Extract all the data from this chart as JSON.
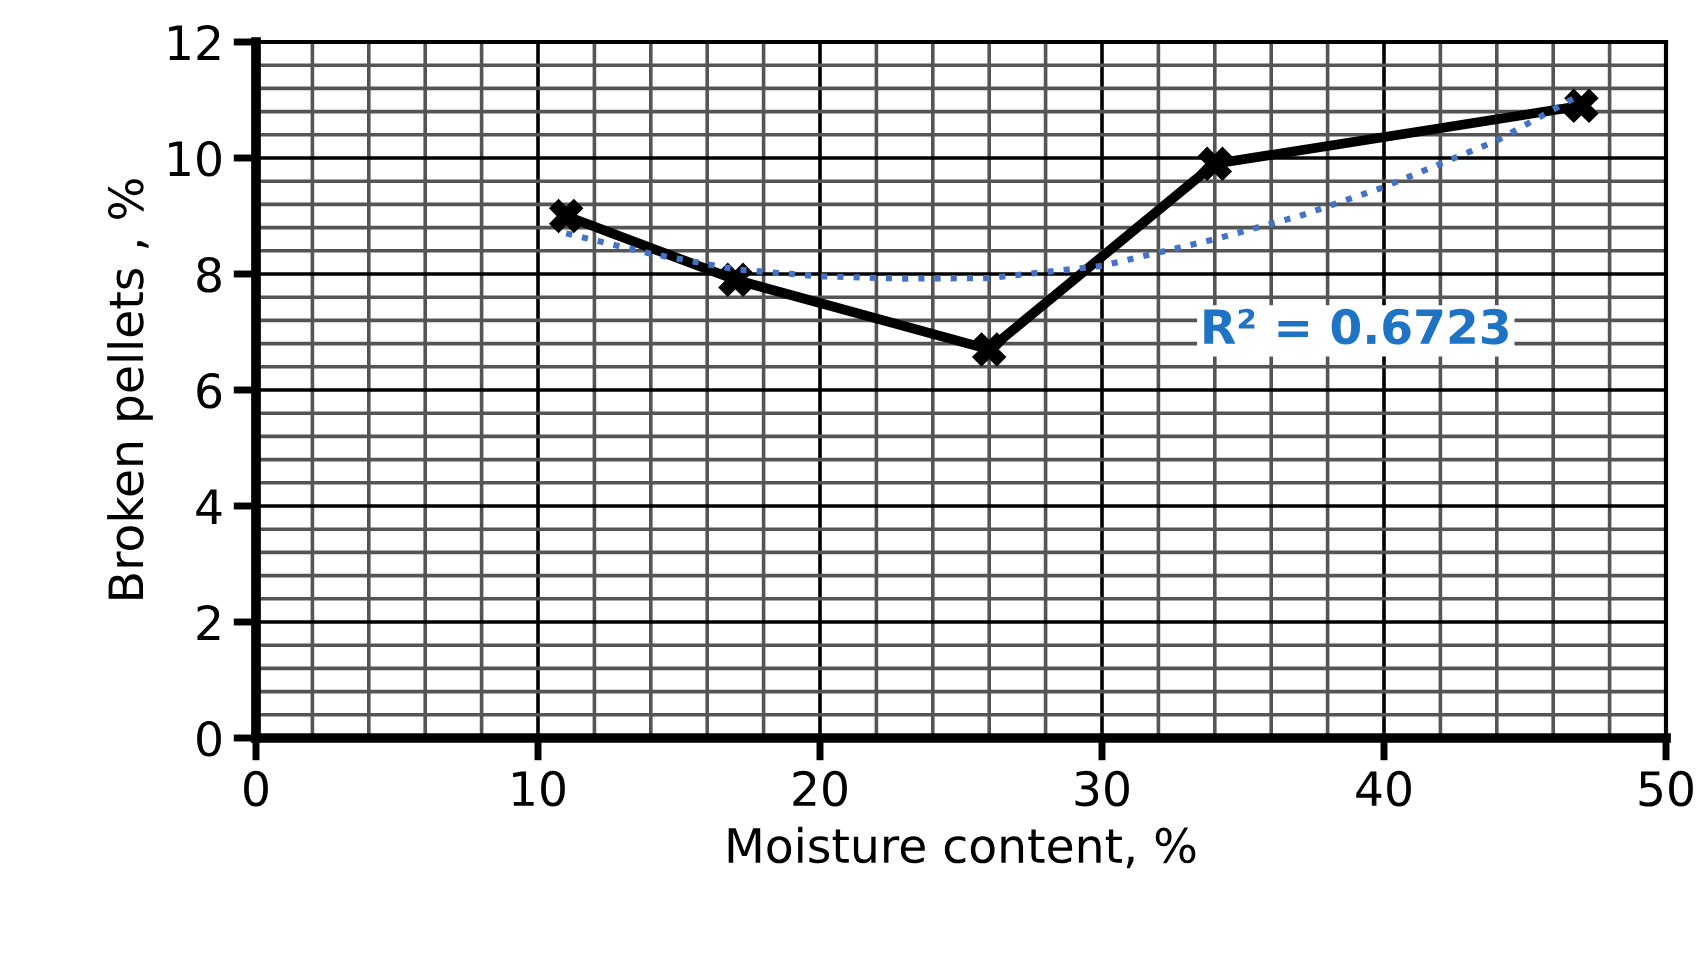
{
  "chart_data": {
    "type": "line",
    "xlabel": "Moisture content, %",
    "ylabel": "Broken pellets , %",
    "xlim": [
      0,
      50
    ],
    "xticks": [
      0,
      10,
      20,
      30,
      40,
      50
    ],
    "ylim": [
      0,
      12
    ],
    "yticks": [
      0,
      2,
      4,
      6,
      8,
      10,
      12
    ],
    "grid": true,
    "series": [
      {
        "color": "#000000",
        "marker": "cross",
        "line_style": "solid",
        "x": [
          11,
          17,
          26,
          34,
          47
        ],
        "values": [
          9.0,
          7.9,
          6.7,
          9.9,
          10.9
        ]
      },
      {
        "color": "#4472c4",
        "marker": "none",
        "line_style": "dotted",
        "x": [
          11,
          14,
          17,
          20,
          23,
          26,
          30,
          34,
          37,
          40,
          44,
          47
        ],
        "values": [
          8.7,
          8.35,
          8.08,
          7.96,
          7.92,
          7.93,
          8.14,
          8.6,
          9.0,
          9.5,
          10.3,
          11.1
        ]
      }
    ],
    "annotations": [
      "R² = 0.6723"
    ]
  }
}
